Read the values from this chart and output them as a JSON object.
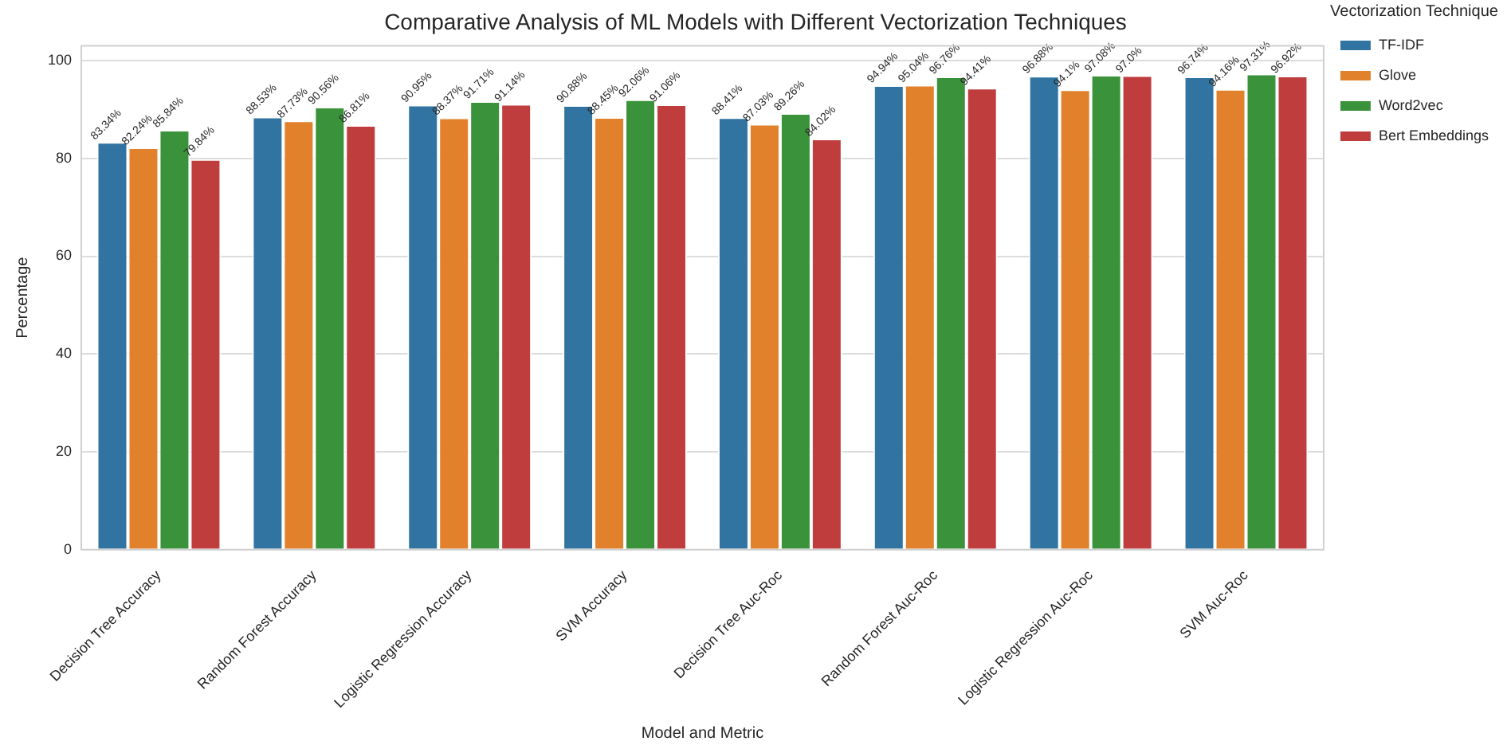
{
  "chart_data": {
    "type": "bar",
    "title": "Comparative Analysis of ML Models with Different Vectorization Techniques",
    "xlabel": "Model and Metric",
    "ylabel": "Percentage",
    "legend_title": "Vectorization Technique",
    "categories": [
      "Decision Tree Accuracy",
      "Random Forest Accuracy",
      "Logistic Regression Accuracy",
      "SVM Accuracy",
      "Decision Tree Auc-Roc",
      "Random Forest Auc-Roc",
      "Logistic Regression Auc-Roc",
      "SVM Auc-Roc"
    ],
    "series": [
      {
        "name": "TF-IDF",
        "color": "#3274a1",
        "values": [
          83.34,
          88.53,
          90.95,
          90.88,
          88.41,
          94.94,
          96.88,
          96.74
        ],
        "value_labels": [
          "83.34%",
          "88.53%",
          "90.95%",
          "90.88%",
          "88.41%",
          "94.94%",
          "96.88%",
          "96.74%"
        ]
      },
      {
        "name": "Glove",
        "color": "#e1812c",
        "values": [
          82.24,
          87.73,
          88.37,
          88.45,
          87.03,
          95.04,
          94.1,
          94.16
        ],
        "value_labels": [
          "82.24%",
          "87.73%",
          "88.37%",
          "88.45%",
          "87.03%",
          "95.04%",
          "94.1%",
          "94.16%"
        ]
      },
      {
        "name": "Word2vec",
        "color": "#3a923a",
        "values": [
          85.84,
          90.56,
          91.71,
          92.06,
          89.26,
          96.76,
          97.08,
          97.31
        ],
        "value_labels": [
          "85.84%",
          "90.56%",
          "91.71%",
          "92.06%",
          "89.26%",
          "96.76%",
          "97.08%",
          "97.31%"
        ]
      },
      {
        "name": "Bert Embeddings",
        "color": "#c03d3e",
        "values": [
          79.84,
          86.81,
          91.14,
          91.06,
          84.02,
          94.41,
          97.0,
          96.92
        ],
        "value_labels": [
          "79.84%",
          "86.81%",
          "91.14%",
          "91.06%",
          "84.02%",
          "94.41%",
          "97.0%",
          "96.92%"
        ]
      }
    ],
    "ylim": [
      0,
      103
    ],
    "yticks": [
      0,
      20,
      40,
      60,
      80,
      100
    ],
    "grid": "y",
    "legend": "top right"
  }
}
